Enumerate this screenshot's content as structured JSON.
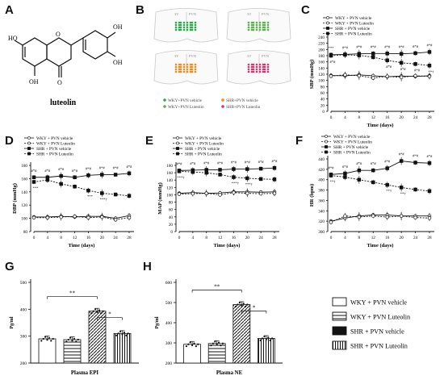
{
  "panel_labels": [
    "A",
    "B",
    "C",
    "D",
    "E",
    "F",
    "G",
    "H"
  ],
  "compound": {
    "name": "luteolin",
    "atoms": [
      "HO",
      "OH",
      "OH",
      "OH",
      "O",
      "O"
    ]
  },
  "brain_sections": {
    "region_labels": [
      "3V",
      "PVN"
    ],
    "legend": [
      "WKY+PVN vehicle",
      "WKY+PVN Luteolin",
      "SHR+PVN vehicle",
      "SHR+PVN Luteolin"
    ],
    "colors": [
      "#27a84a",
      "#5ab24a",
      "#f28a1a",
      "#d6346e"
    ]
  },
  "line_legend": [
    "WKY + PVN vehicle",
    "WKY + PVN Luteolin",
    "SHR + PVN vehicle",
    "SHR + PVN Luteolin"
  ],
  "f_legend": [
    "WKY + PVN vehicle",
    "WKY + PVN Luteolin",
    "SHR + PVN vehicle",
    "SHR + PVN Luteolin"
  ],
  "bar_legend": [
    "WKY + PVN vehicle",
    "WKY + PVN Luteolin",
    "SHR + PVN vehicle",
    "SHR + PVN Luteolin"
  ],
  "chart_data": [
    {
      "id": "C",
      "type": "line",
      "ylabel": "SBP (mmHg)",
      "xlabel": "Time (days)",
      "x": [
        0,
        4,
        8,
        12,
        16,
        20,
        24,
        28
      ],
      "ylim": [
        0,
        240
      ],
      "yticks": [
        0,
        20,
        40,
        60,
        80,
        100,
        120,
        140,
        160,
        180,
        200,
        220,
        240
      ],
      "series": [
        {
          "name": "WKY + PVN vehicle",
          "values": [
            116,
            115,
            118,
            115,
            112,
            114,
            113,
            115
          ]
        },
        {
          "name": "WKY + PVN Luteolin",
          "values": [
            114,
            118,
            115,
            108,
            113,
            110,
            115,
            113
          ]
        },
        {
          "name": "SHR + PVN vehicle",
          "values": [
            183,
            184,
            186,
            187,
            187,
            186,
            188,
            192
          ]
        },
        {
          "name": "SHR + PVN Luteolin",
          "values": [
            180,
            183,
            181,
            175,
            165,
            157,
            153,
            148
          ]
        }
      ],
      "annotations": [
        "***",
        "#*#",
        "#*#",
        "#*#",
        "#*#",
        "#*#",
        "#*#",
        "#*#",
        "#*#",
        "#*#",
        "#*#",
        "#*#",
        "**†",
        "**†",
        "**†"
      ]
    },
    {
      "id": "D",
      "type": "line",
      "ylabel": "DBP (mmHg)",
      "xlabel": "Time (days)",
      "x": [
        0,
        4,
        8,
        12,
        16,
        20,
        24,
        28
      ],
      "ylim": [
        80,
        180
      ],
      "yticks": [
        80,
        100,
        120,
        140,
        160,
        180
      ],
      "series": [
        {
          "name": "WKY + PVN vehicle",
          "values": [
            102,
            102,
            103,
            102,
            103,
            103,
            100,
            104
          ]
        },
        {
          "name": "WKY + PVN Luteolin",
          "values": [
            101,
            101,
            102,
            103,
            101,
            102,
            98,
            101
          ]
        },
        {
          "name": "SHR + PVN vehicle",
          "values": [
            162,
            162,
            164,
            162,
            165,
            166,
            166,
            168
          ]
        },
        {
          "name": "SHR + PVN Luteolin",
          "values": [
            155,
            158,
            152,
            148,
            142,
            138,
            136,
            134
          ]
        }
      ],
      "annotations": [
        "#*#",
        "#*#",
        "#*#",
        "#*#",
        "#*#",
        "#*#",
        "#*#",
        "#*#",
        "***",
        "***",
        "***†"
      ]
    },
    {
      "id": "E",
      "type": "line",
      "ylabel": "MAP (mmHg)",
      "xlabel": "Time (days)",
      "x": [
        0,
        4,
        8,
        12,
        16,
        20,
        24,
        28
      ],
      "ylim": [
        0,
        180
      ],
      "yticks": [
        0,
        20,
        40,
        60,
        80,
        100,
        120,
        140,
        160,
        180
      ],
      "series": [
        {
          "name": "WKY + PVN vehicle",
          "values": [
            104,
            106,
            104,
            105,
            108,
            108,
            107,
            108
          ]
        },
        {
          "name": "WKY + PVN Luteolin",
          "values": [
            102,
            103,
            104,
            100,
            106,
            104,
            103,
            104
          ]
        },
        {
          "name": "SHR + PVN vehicle",
          "values": [
            166,
            167,
            168,
            168,
            170,
            170,
            171,
            173
          ]
        },
        {
          "name": "SHR + PVN Luteolin",
          "values": [
            164,
            162,
            160,
            155,
            148,
            145,
            143,
            142
          ]
        }
      ],
      "annotations": [
        "#*#",
        "#*#",
        "#*#",
        "#*#",
        "#*#",
        "#*#",
        "#*#",
        "#*#",
        "***†",
        "***†",
        "***†"
      ]
    },
    {
      "id": "F",
      "type": "line",
      "ylabel": "HR (bpm)",
      "xlabel": "Time (days)",
      "x": [
        0,
        4,
        8,
        12,
        16,
        20,
        24,
        28
      ],
      "ylim": [
        300,
        440
      ],
      "yticks": [
        300,
        320,
        340,
        360,
        380,
        400,
        420,
        440
      ],
      "series": [
        {
          "name": "WKY + PVN vehicle",
          "values": [
            320,
            326,
            330,
            332,
            332,
            330,
            330,
            330
          ]
        },
        {
          "name": "WKY + PVN Luteolin",
          "values": [
            318,
            330,
            328,
            330,
            328,
            330,
            327,
            326
          ]
        },
        {
          "name": "SHR + PVN vehicle",
          "values": [
            410,
            412,
            418,
            418,
            422,
            436,
            433,
            432
          ]
        },
        {
          "name": "SHR + PVN Luteolin",
          "values": [
            408,
            405,
            400,
            395,
            390,
            385,
            381,
            378
          ]
        }
      ],
      "annotations": [
        "#*#",
        "#*#",
        "#*#",
        "#*#",
        "#*#",
        "#*#",
        "#*#",
        "#*#",
        "**†",
        "**†",
        "**†"
      ]
    },
    {
      "id": "G",
      "type": "bar",
      "xlabel": "Plasma EPI",
      "ylabel": "Pg/ml",
      "ylim": [
        200,
        500
      ],
      "yticks": [
        200,
        300,
        400,
        500
      ],
      "categories": [
        "WKY + PVN vehicle",
        "WKY + PVN Luteolin",
        "SHR + PVN vehicle",
        "SHR + PVN Luteolin"
      ],
      "values": [
        290,
        287,
        393,
        310
      ],
      "significance": [
        "**",
        "*"
      ]
    },
    {
      "id": "H",
      "type": "bar",
      "xlabel": "Plasma NE",
      "ylabel": "Pg/ml",
      "ylim": [
        200,
        600
      ],
      "yticks": [
        200,
        300,
        400,
        500,
        600
      ],
      "categories": [
        "WKY + PVN vehicle",
        "WKY + PVN Luteolin",
        "SHR + PVN vehicle",
        "SHR + PVN Luteolin"
      ],
      "values": [
        293,
        297,
        490,
        322
      ],
      "significance": [
        "**",
        "*"
      ]
    }
  ]
}
